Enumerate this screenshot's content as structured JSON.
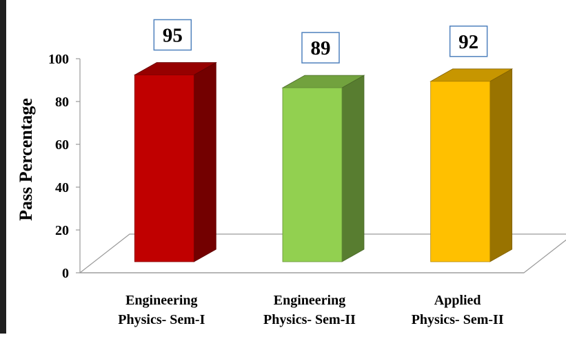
{
  "chart_data": {
    "type": "bar",
    "style": "3d-column",
    "title": "",
    "xlabel": "",
    "ylabel": "Pass Percentage",
    "ylim": [
      0,
      100
    ],
    "yticks": [
      "0",
      "20",
      "40",
      "60",
      "80",
      "100"
    ],
    "categories": [
      [
        "Engineering",
        "Physics- Sem-I"
      ],
      [
        "Engineering",
        "Physics- Sem-II"
      ],
      [
        "Applied",
        "Physics- Sem-II"
      ]
    ],
    "values": [
      95,
      89,
      92
    ],
    "data_labels": [
      "95",
      "89",
      "92"
    ],
    "colors": [
      "#c00000",
      "#92d050",
      "#ffc000"
    ],
    "grid": false,
    "legend": "none"
  }
}
